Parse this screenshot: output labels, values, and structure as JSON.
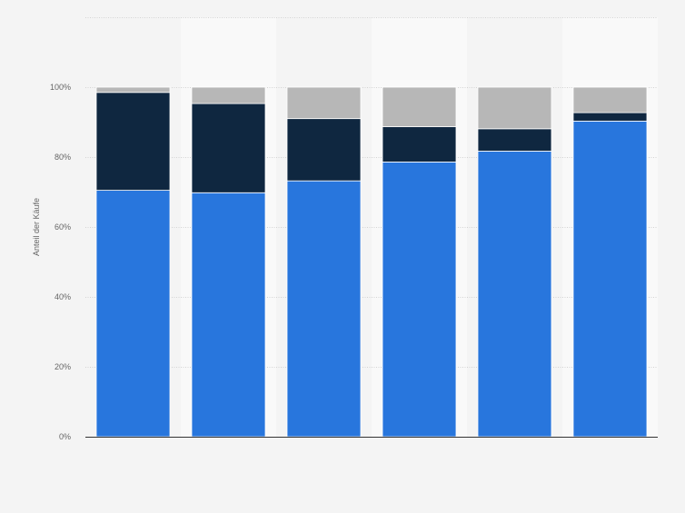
{
  "chart_data": {
    "type": "bar",
    "stacked": true,
    "categories": [
      "",
      "",
      "",
      "",
      "",
      ""
    ],
    "series": [
      {
        "values": [
          70.5,
          69.8,
          73.2,
          78.6,
          81.7,
          90.3
        ],
        "color": "#2876dd"
      },
      {
        "values": [
          28.0,
          25.5,
          17.8,
          10.1,
          6.4,
          2.4
        ],
        "color": "#0f2740"
      },
      {
        "values": [
          1.5,
          4.7,
          9.0,
          11.3,
          11.9,
          7.3
        ],
        "color": "#b7b7b7"
      }
    ],
    "ylabel": "Anteil der Käufe",
    "ylim": [
      0,
      120
    ],
    "yticks": [
      0,
      20,
      40,
      60,
      80,
      100
    ],
    "ytick_labels": [
      "0%",
      "20%",
      "40%",
      "60%",
      "80%",
      "100%"
    ],
    "grid": true,
    "colors": {
      "background": "#f4f4f4",
      "alternate_band": "#f9f9f9",
      "grid": "#d3d3d3",
      "axis": "#333333",
      "tick_text": "#666666"
    }
  }
}
